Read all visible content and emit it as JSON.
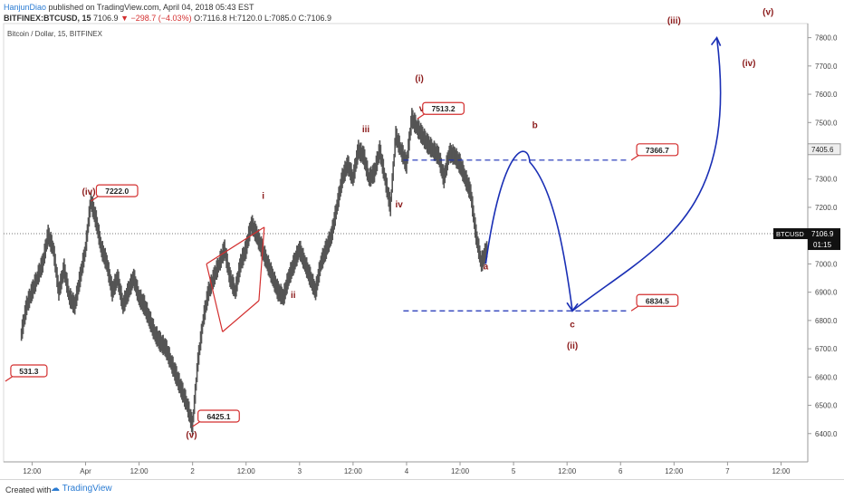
{
  "header": {
    "author": "HanjunDiao",
    "published_text": "published on TradingView.com, April 04, 2018 05:43 EST",
    "symbol": "BITFINEX:BTCUSD, 15",
    "last": "7106.9",
    "change": "−298.7 (−4.03%)",
    "ohlc": "O:7116.8 H:7120.0 L:7085.0 C:7106.9"
  },
  "chart_title": "Bitcoin / Dollar, 15, BITFINEX",
  "footer": {
    "created_with": "Created with",
    "brand": "TradingView"
  },
  "colors": {
    "candles": "#555555",
    "wave_label": "#8b1a1a",
    "arrow": "#1a2fb5",
    "callout": "#d32f2f",
    "dashed": "#1a2fb5"
  },
  "chart_data": {
    "type": "line",
    "series": [
      {
        "name": "BTCUSD",
        "x": [
          -0.6,
          -0.55,
          -0.5,
          -0.45,
          -0.4,
          -0.35,
          -0.3,
          -0.25,
          -0.2,
          -0.15,
          -0.1,
          -0.05,
          0,
          0.05,
          0.1,
          0.15,
          0.2,
          0.25,
          0.3,
          0.35,
          0.4,
          0.45,
          0.5,
          0.55,
          0.6,
          0.65,
          0.7,
          0.75,
          0.8,
          0.85,
          0.9,
          0.95,
          1.0,
          1.05,
          1.1,
          1.15,
          1.2,
          1.25,
          1.3,
          1.35,
          1.4,
          1.45,
          1.5,
          1.55,
          1.6,
          1.65,
          1.7,
          1.75,
          1.8,
          1.85,
          1.9,
          1.95,
          2.0,
          2.05,
          2.1,
          2.15,
          2.2,
          2.25,
          2.3,
          2.35,
          2.4,
          2.45,
          2.5,
          2.55,
          2.6,
          2.65,
          2.7,
          2.75,
          2.8,
          2.85,
          2.9,
          2.95,
          3.0,
          3.05,
          3.1,
          3.15,
          3.2,
          3.25,
          3.3,
          3.35,
          3.4,
          3.45,
          3.5,
          3.55,
          3.6,
          3.65,
          3.7,
          3.75,
          3.8,
          3.85,
          3.9,
          3.95,
          4.0,
          4.05,
          4.1,
          4.15,
          4.2,
          4.25,
          4.3,
          4.35,
          4.4,
          4.45,
          4.5,
          4.55,
          4.6,
          4.65,
          4.7
        ],
        "y": [
          6750,
          6850,
          6900,
          6950,
          7000,
          7100,
          7050,
          6900,
          6980,
          6880,
          6850,
          6950,
          7050,
          7222,
          7150,
          7050,
          7000,
          6900,
          6950,
          6850,
          6900,
          6950,
          6880,
          6850,
          6800,
          6750,
          6720,
          6700,
          6650,
          6600,
          6550,
          6500,
          6425,
          6650,
          6800,
          6900,
          6950,
          7000,
          7050,
          6950,
          6900,
          7000,
          7050,
          7140,
          7100,
          7050,
          7000,
          6950,
          6900,
          6880,
          6950,
          7000,
          7050,
          7000,
          6950,
          6900,
          7000,
          7050,
          7100,
          7200,
          7300,
          7350,
          7300,
          7400,
          7380,
          7300,
          7320,
          7400,
          7300,
          7200,
          7450,
          7400,
          7350,
          7513,
          7480,
          7450,
          7420,
          7400,
          7380,
          7300,
          7390,
          7380,
          7350,
          7300,
          7250,
          7100,
          7000,
          7050,
          7100,
          7050,
          7050,
          7100,
          7080,
          7120,
          7100,
          7080,
          7100,
          7106,
          7106,
          7106,
          7106,
          7106,
          7106,
          7106,
          7106,
          7106,
          7106
        ],
        "note_values": "approximate close prices read from chart"
      }
    ],
    "x_ticks": [
      {
        "v": -0.5,
        "label": "12:00"
      },
      {
        "v": 0,
        "label": "Apr"
      },
      {
        "v": 0.5,
        "label": "12:00"
      },
      {
        "v": 1,
        "label": "2"
      },
      {
        "v": 1.5,
        "label": "12:00"
      },
      {
        "v": 2,
        "label": "3"
      },
      {
        "v": 2.5,
        "label": "12:00"
      },
      {
        "v": 3,
        "label": "4"
      },
      {
        "v": 3.5,
        "label": "12:00"
      },
      {
        "v": 4,
        "label": "5"
      },
      {
        "v": 4.5,
        "label": "12:00"
      },
      {
        "v": 5,
        "label": "6"
      },
      {
        "v": 5.5,
        "label": "12:00"
      },
      {
        "v": 6,
        "label": "7"
      },
      {
        "v": 6.5,
        "label": "12:00"
      }
    ],
    "y_ticks": [
      6400,
      6500,
      6600,
      6700,
      6800,
      6900,
      7000,
      7100,
      7200,
      7300,
      7400,
      7500,
      7600,
      7700,
      7800
    ],
    "ylim": [
      6300,
      7850
    ],
    "last_price": 7106.9,
    "last_price_label": "BTCUSD",
    "countdown": "01:15",
    "prev_close_label": "7405.6",
    "prev_close": 7405.6,
    "callouts": [
      {
        "label": "7222.0",
        "x": 0.05,
        "y": 7222
      },
      {
        "label": "7513.2",
        "x": 3.1,
        "y": 7513
      },
      {
        "label": "7366.7",
        "x": 5.1,
        "y": 7367
      },
      {
        "label": "6834.5",
        "x": 5.1,
        "y": 6834
      },
      {
        "label": "6425.1",
        "x": 1.0,
        "y": 6425
      },
      {
        "label": "531.3",
        "x": -0.75,
        "y": 6585
      }
    ],
    "wave_labels": [
      {
        "label": "(iv)",
        "x": 0.03,
        "y": 7245
      },
      {
        "label": "(i)",
        "x": 3.12,
        "y": 7645
      },
      {
        "label": "v",
        "x": 3.14,
        "y": 7540
      },
      {
        "label": "iii",
        "x": 2.62,
        "y": 7465
      },
      {
        "label": "iv",
        "x": 2.93,
        "y": 7200
      },
      {
        "label": "i",
        "x": 1.66,
        "y": 7230
      },
      {
        "label": "ii",
        "x": 1.94,
        "y": 6880
      },
      {
        "label": "(v)",
        "x": 0.99,
        "y": 6385
      },
      {
        "label": "a",
        "x": 3.74,
        "y": 6980
      },
      {
        "label": "b",
        "x": 4.2,
        "y": 7480
      },
      {
        "label": "c",
        "x": 4.55,
        "y": 6775
      },
      {
        "label": "(ii)",
        "x": 4.55,
        "y": 6700
      },
      {
        "label": "(iii)",
        "x": 5.5,
        "y": 7850
      },
      {
        "label": "(iv)",
        "x": 6.2,
        "y": 7700
      },
      {
        "label": "(v)",
        "x": 6.38,
        "y": 7880
      }
    ],
    "levels": [
      {
        "y": 7367,
        "x_from": 2.97,
        "x_to": 5.07
      },
      {
        "y": 6834,
        "x_from": 2.97,
        "x_to": 5.07
      }
    ],
    "projection_path": [
      [
        3.74,
        7000
      ],
      [
        4.05,
        7360
      ],
      [
        4.55,
        6834
      ],
      [
        5.9,
        7800
      ]
    ],
    "triangle": {
      "upper": [
        [
          1.13,
          7000
        ],
        [
          1.67,
          7130
        ]
      ],
      "lower": [
        [
          1.28,
          6760
        ],
        [
          1.62,
          6870
        ]
      ]
    }
  }
}
